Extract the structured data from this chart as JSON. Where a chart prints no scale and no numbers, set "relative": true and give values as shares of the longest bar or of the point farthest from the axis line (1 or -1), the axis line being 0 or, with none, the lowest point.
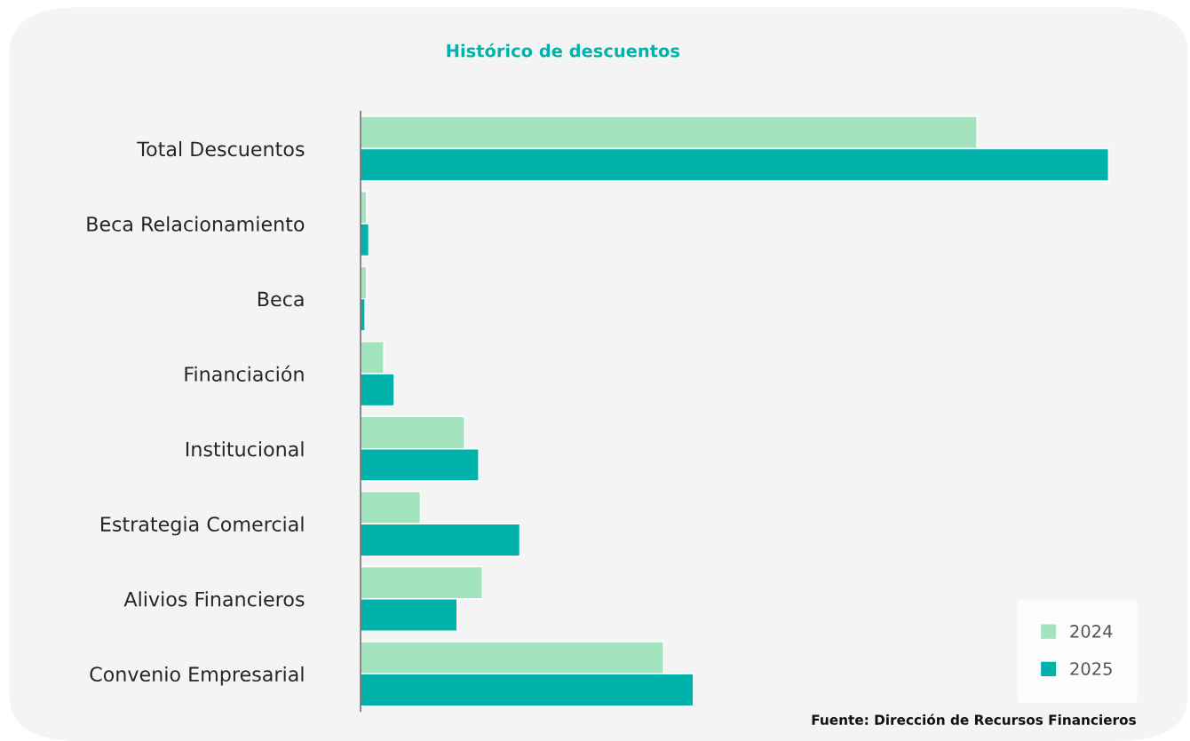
{
  "chart_data": {
    "type": "bar",
    "orientation": "horizontal",
    "relative": true,
    "title": "Histórico de descuentos",
    "categories": [
      "Total Descuentos",
      "Beca Relacionamiento",
      "Beca",
      "Financiación",
      "Institucional",
      "Estrategia Comercial",
      "Alivios Financieros",
      "Convenio Empresarial"
    ],
    "series": [
      {
        "name": "2024",
        "color": "#a3e4bf",
        "values": [
          0.824,
          0.008,
          0.008,
          0.031,
          0.139,
          0.08,
          0.163,
          0.405
        ]
      },
      {
        "name": "2025",
        "color": "#00b2aa",
        "values": [
          1.0,
          0.011,
          0.006,
          0.045,
          0.158,
          0.213,
          0.129,
          0.445
        ]
      }
    ],
    "legend": "bottom right",
    "grid": false,
    "annotations": [
      "Fuente: Dirección de Recursos Financieros"
    ]
  }
}
